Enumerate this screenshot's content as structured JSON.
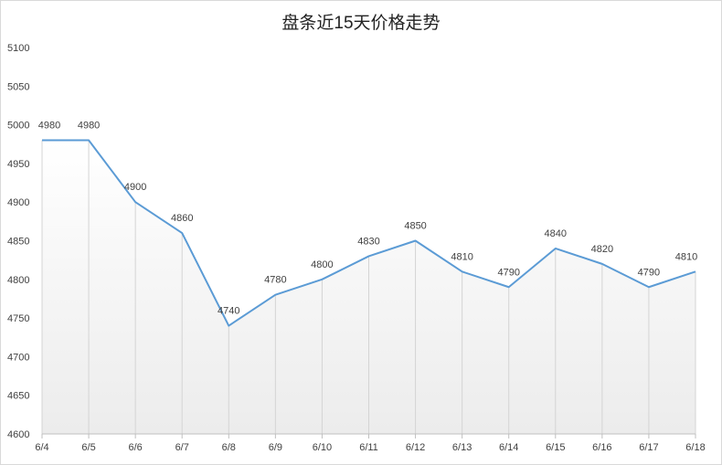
{
  "chart_data": {
    "type": "area",
    "title": "盘条近15天价格走势",
    "categories": [
      "6/4",
      "6/5",
      "6/6",
      "6/7",
      "6/8",
      "6/9",
      "6/10",
      "6/11",
      "6/12",
      "6/13",
      "6/14",
      "6/15",
      "6/16",
      "6/17",
      "6/18"
    ],
    "series": [
      {
        "values": [
          4980,
          4980,
          4900,
          4860,
          4740,
          4780,
          4800,
          4830,
          4850,
          4810,
          4790,
          4840,
          4820,
          4790,
          4810
        ]
      }
    ],
    "yticks": [
      "4600",
      "4650",
      "4700",
      "4750",
      "4800",
      "4850",
      "4900",
      "4950",
      "5000",
      "5050",
      "5100"
    ],
    "ylim": [
      4600,
      5100
    ],
    "xlabel": "",
    "ylabel": "",
    "grid": "vertical",
    "legend": "none",
    "line_color": "#5b9bd5",
    "label_color": "#404040"
  }
}
